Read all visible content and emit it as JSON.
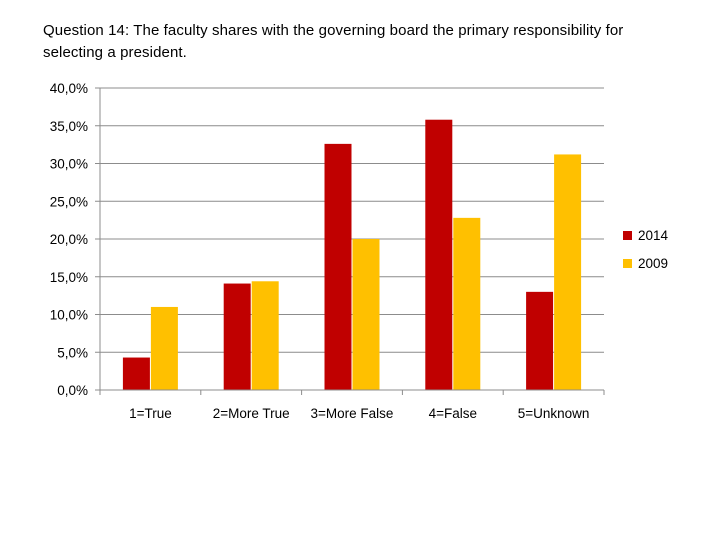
{
  "title": "Question 14: The faculty shares with the governing board the primary responsibility for selecting a president.",
  "chart_data": {
    "type": "bar",
    "categories": [
      "1=True",
      "2=More True",
      "3=More False",
      "4=False",
      "5=Unknown"
    ],
    "series": [
      {
        "name": "2014",
        "color": "#c00000",
        "values": [
          4.3,
          14.1,
          32.6,
          35.8,
          13.0
        ]
      },
      {
        "name": "2009",
        "color": "#ffc000",
        "values": [
          11.0,
          14.4,
          20.0,
          22.8,
          31.2
        ]
      }
    ],
    "ylim": [
      0,
      40
    ],
    "ytick_step": 5,
    "ytick_labels": [
      "0,0%",
      "5,0%",
      "10,0%",
      "15,0%",
      "20,0%",
      "25,0%",
      "30,0%",
      "35,0%",
      "40,0%"
    ],
    "grid": true,
    "legend_position": "right",
    "xlabel": "",
    "ylabel": ""
  }
}
